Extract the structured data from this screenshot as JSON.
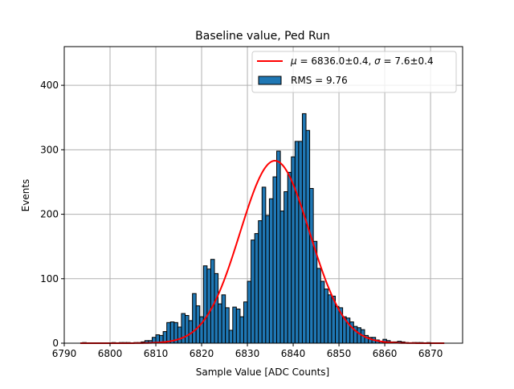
{
  "chart_data": {
    "type": "bar",
    "title": "Baseline value, Ped Run",
    "xlabel": "Sample Value [ADC Counts]",
    "ylabel": "Events",
    "xlim": [
      6790,
      6877
    ],
    "ylim": [
      0,
      460
    ],
    "xticks": [
      6790,
      6800,
      6810,
      6820,
      6830,
      6840,
      6850,
      6860,
      6870
    ],
    "yticks": [
      0,
      100,
      200,
      300,
      400
    ],
    "grid": true,
    "legend_position": "top-right",
    "bin_width": 0.8,
    "bin_start": 6794.0,
    "series": [
      {
        "name": "RMS = 9.76",
        "kind": "histogram",
        "color": "#1f77b4",
        "edgecolor": "#000000",
        "values": [
          1,
          0,
          0,
          0,
          0,
          0,
          0,
          0,
          1,
          0,
          1,
          1,
          1,
          0,
          1,
          1,
          2,
          4,
          4,
          9,
          13,
          12,
          18,
          32,
          33,
          32,
          25,
          46,
          43,
          35,
          77,
          58,
          41,
          120,
          115,
          130,
          108,
          61,
          75,
          55,
          20,
          56,
          53,
          41,
          64,
          96,
          160,
          170,
          190,
          242,
          198,
          224,
          258,
          298,
          205,
          235,
          265,
          289,
          313,
          313,
          356,
          330,
          240,
          158,
          116,
          96,
          84,
          75,
          73,
          57,
          55,
          41,
          39,
          33,
          26,
          24,
          21,
          12,
          9,
          9,
          5,
          3,
          6,
          4,
          2,
          2,
          3,
          2,
          1,
          0,
          1,
          1,
          1,
          0,
          1,
          0,
          0,
          0,
          0
        ],
        "label": "RMS = 9.76"
      },
      {
        "name": "μ = 6836.0±0.4, σ = 7.6±0.4",
        "kind": "gaussian-fit",
        "color": "#ff0000",
        "mu": 6836.0,
        "sigma": 7.6,
        "amplitude": 283,
        "x_range": [
          6793.5,
          6873.0
        ],
        "label_parts": {
          "mu_sym": "μ",
          "mu_val": " = 6836.0±0.4, ",
          "sigma_sym": "σ",
          "sigma_val": " = 7.6±0.4"
        }
      }
    ]
  }
}
